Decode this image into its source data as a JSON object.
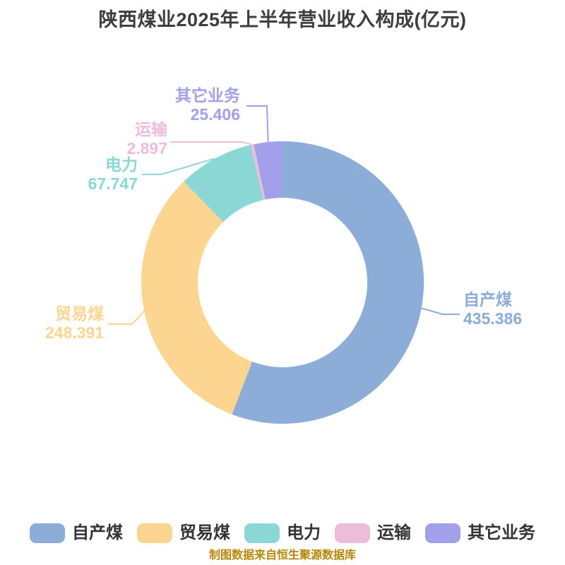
{
  "chart_data": {
    "type": "donut",
    "title": "陕西煤业2025年上半年营业收入构成(亿元)",
    "categories": [
      "自产煤",
      "贸易煤",
      "电力",
      "运输",
      "其它业务"
    ],
    "values": [
      435.386,
      248.391,
      67.747,
      2.897,
      25.406
    ],
    "colors": [
      "#8BADD8",
      "#FCD690",
      "#8AD7D5",
      "#EDBCDB",
      "#A2A0EA"
    ],
    "unit": "亿元",
    "start_angle_deg": 0,
    "direction": "clockwise",
    "inner_radius_ratio": 0.6,
    "legend_position": "bottom",
    "grid": false
  },
  "footer": {
    "source_note": "制图数据来自恒生聚源数据库",
    "source_note_color": "#B8860B"
  }
}
